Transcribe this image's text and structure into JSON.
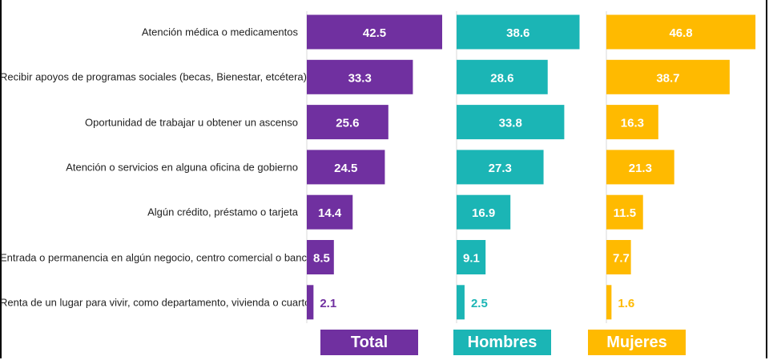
{
  "chart_data": {
    "type": "bar",
    "orientation": "horizontal",
    "categories": [
      "Atención médica o medicamentos",
      "Recibir apoyos de programas sociales (becas, Bienestar, etcétera)",
      "Oportunidad de trabajar u obtener un ascenso",
      "Atención o servicios en alguna oficina de gobierno",
      "Algún crédito, préstamo o tarjeta",
      "Entrada o permanencia en algún negocio, centro comercial o banco",
      "Renta de un lugar para vivir, como departamento, vivienda o cuarto"
    ],
    "series": [
      {
        "name": "Total",
        "color": "#7030A0",
        "values": [
          42.5,
          33.3,
          25.6,
          24.5,
          14.4,
          8.5,
          2.1
        ]
      },
      {
        "name": "Hombres",
        "color": "#1BB5B5",
        "values": [
          38.6,
          28.6,
          33.8,
          27.3,
          16.9,
          9.1,
          2.5
        ]
      },
      {
        "name": "Mujeres",
        "color": "#FFBA00",
        "values": [
          46.8,
          38.7,
          16.3,
          21.3,
          11.5,
          7.7,
          1.6
        ]
      }
    ],
    "title": "",
    "xlabel": "",
    "ylabel": "",
    "xlim": [
      0,
      48
    ],
    "grid": false,
    "legend": "bottom",
    "data_labels": true
  }
}
